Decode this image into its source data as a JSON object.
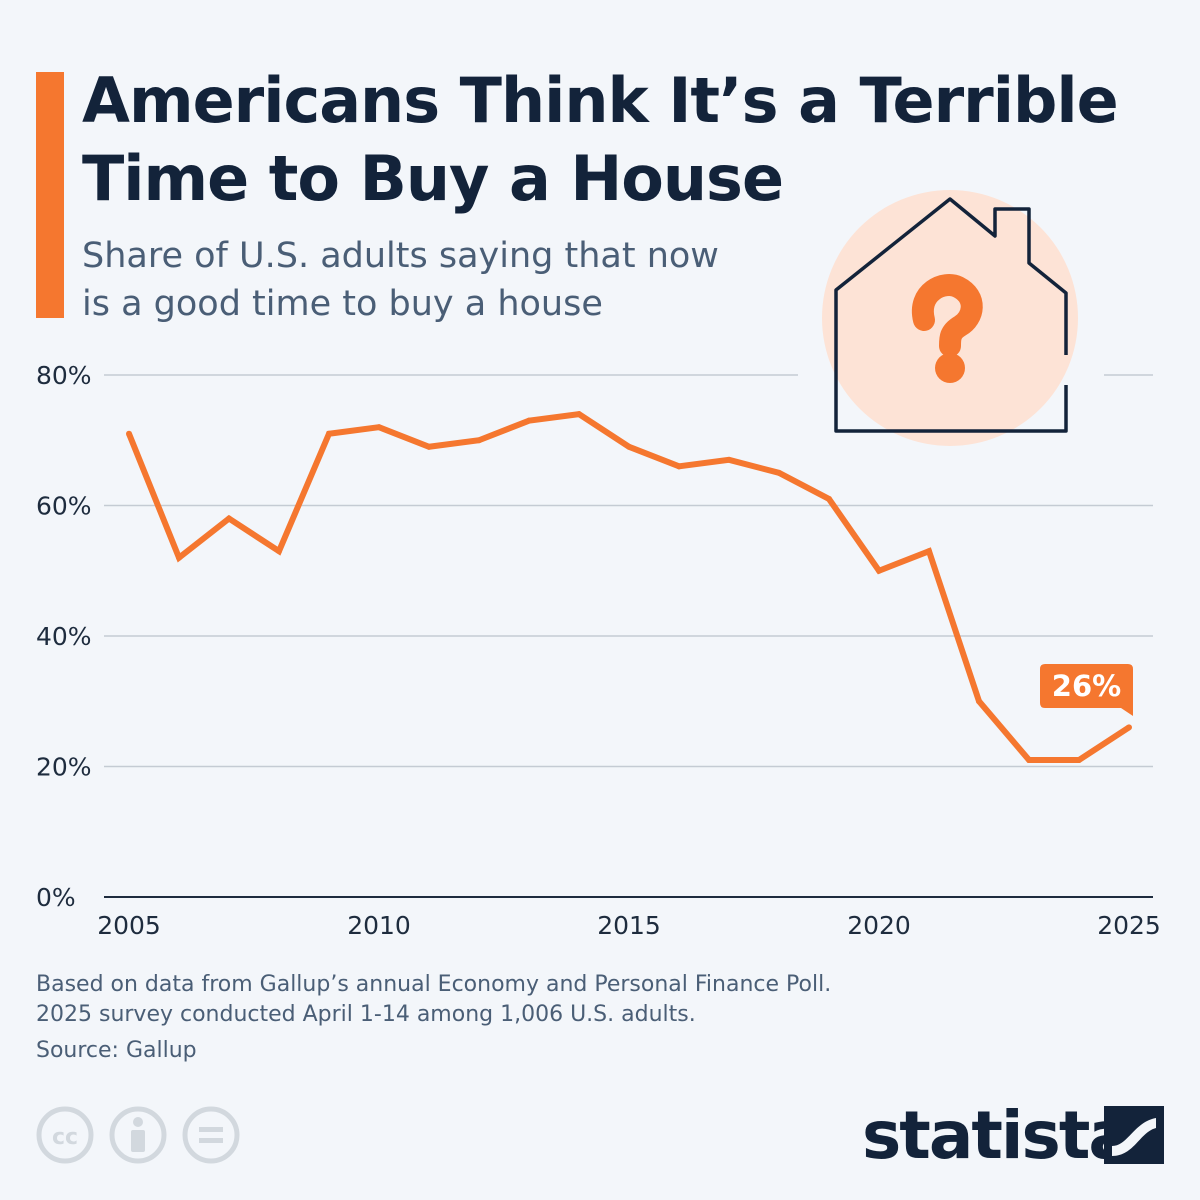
{
  "title": "Americans Think It’s a Terrible Time to Buy a House",
  "subtitle": "Share of U.S. adults saying that now is a good time to buy a house",
  "footnotes": [
    "Based on data from Gallup’s annual Economy and Personal Finance Poll.",
    "2025 survey conducted April 1-14 among 1,006 U.S. adults."
  ],
  "source": "Source: Gallup",
  "brand": "statista",
  "colors": {
    "accent": "#f5772f",
    "text_dark": "#13233a",
    "text_muted": "#4a5e76",
    "grid": "#c4cbd3",
    "background": "#f3f6fa"
  },
  "icons": [
    "house-question-icon",
    "cc-icon",
    "attribution-icon",
    "no-derivatives-icon",
    "statista-logo-icon"
  ],
  "chart_data": {
    "type": "line",
    "title": "",
    "xlabel": "",
    "ylabel": "",
    "x": [
      2005,
      2006,
      2007,
      2008,
      2009,
      2010,
      2011,
      2012,
      2013,
      2014,
      2015,
      2016,
      2017,
      2018,
      2019,
      2020,
      2021,
      2022,
      2023,
      2024,
      2025
    ],
    "series": [
      {
        "values": [
          71,
          52,
          58,
          53,
          71,
          72,
          69,
          70,
          73,
          74,
          69,
          66,
          67,
          65,
          61,
          50,
          53,
          30,
          21,
          21,
          26
        ]
      }
    ],
    "xlim": [
      2005,
      2025
    ],
    "ylim": [
      0,
      80
    ],
    "x_ticks": [
      2005,
      2010,
      2015,
      2020,
      2025
    ],
    "y_ticks": [
      0,
      20,
      40,
      60,
      80
    ],
    "y_tick_labels": [
      "0%",
      "20%",
      "40%",
      "60%",
      "80%"
    ],
    "grid": true,
    "legend": "none",
    "annotation": {
      "x": 2025,
      "label": "26%"
    }
  }
}
